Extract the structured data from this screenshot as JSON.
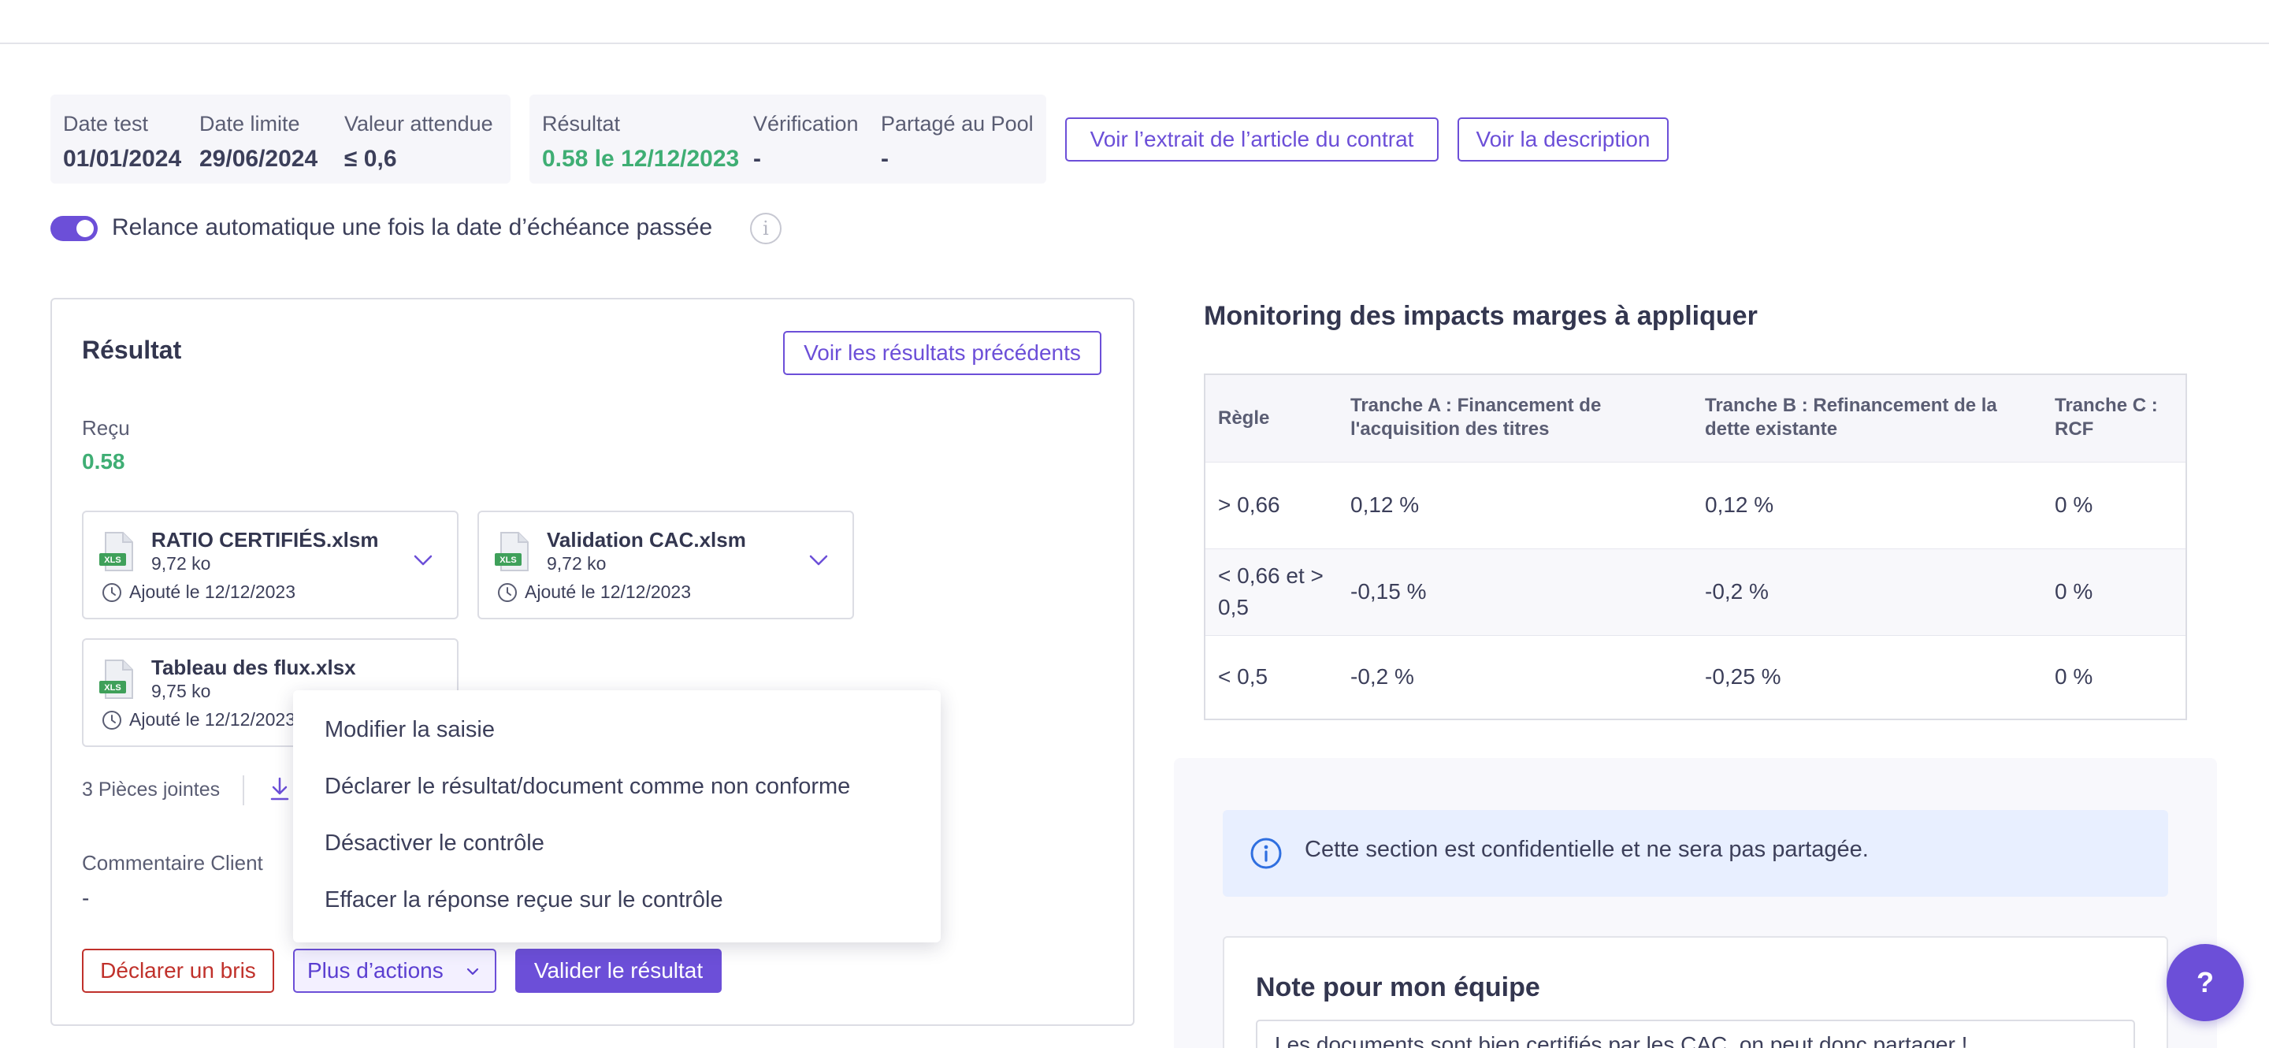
{
  "info": {
    "date_test_label": "Date test",
    "date_test_value": "01/01/2024",
    "date_limite_label": "Date limite",
    "date_limite_value": "29/06/2024",
    "valeur_attendue_label": "Valeur attendue",
    "valeur_attendue_value": "≤ 0,6",
    "resultat_label": "Résultat",
    "resultat_value": "0.58 le 12/12/2023",
    "verification_label": "Vérification",
    "verification_value": "-",
    "partage_label": "Partagé au Pool",
    "partage_value": "-"
  },
  "header_buttons": {
    "extrait": "Voir l’extrait de l’article du contrat",
    "description": "Voir la description"
  },
  "relance": {
    "label": "Relance automatique une fois la date d’échéance passée",
    "enabled": true,
    "info_icon": "i"
  },
  "result_card": {
    "title": "Résultat",
    "previous_button": "Voir les résultats précédents",
    "recu_label": "Reçu",
    "recu_value": "0.58",
    "files": [
      {
        "name": "RATIO CERTIFIÉS.xlsm",
        "size": "9,72 ko",
        "date": "Ajouté le 12/12/2023",
        "icon": "xls-file-icon",
        "badge": "XLS"
      },
      {
        "name": "Validation CAC.xlsm",
        "size": "9,72 ko",
        "date": "Ajouté le 12/12/2023",
        "icon": "xls-file-icon",
        "badge": "XLS"
      },
      {
        "name": "Tableau des flux.xlsx",
        "size": "9,75 ko",
        "date": "Ajouté le 12/12/2023",
        "icon": "xls-file-icon",
        "badge": "XLS"
      }
    ],
    "attachments_label": "3 Pièces jointes",
    "comment_label": "Commentaire Client",
    "comment_value": "-",
    "btn_bris": "Déclarer un bris",
    "btn_more": "Plus d’actions",
    "btn_validate": "Valider le résultat"
  },
  "dropdown": {
    "items": [
      "Modifier la saisie",
      "Déclarer le résultat/document comme non conforme",
      "Désactiver le contrôle",
      "Effacer la réponse reçue sur le contrôle"
    ]
  },
  "monitoring": {
    "title": "Monitoring des impacts marges à appliquer",
    "headers": [
      "Règle",
      "Tranche A : Financement de l'acquisition des titres",
      "Tranche B : Refinancement de la dette existante",
      "Tranche C : RCF"
    ],
    "rows": [
      [
        "> 0,66",
        "0,12 %",
        "0,12 %",
        "0 %"
      ],
      [
        "< 0,66 et > 0,5",
        "-0,15 %",
        "-0,2 %",
        "0 %"
      ],
      [
        "< 0,5",
        "-0,2 %",
        "-0,25 %",
        "0 %"
      ]
    ]
  },
  "confidential": {
    "banner_text": "Cette section est confidentielle et ne sera pas partagée.",
    "note_title": "Note pour mon équipe",
    "note_text": "Les documents sont bien certifiés par les CAC, on peut donc partager !"
  },
  "help": {
    "label": "?"
  },
  "colors": {
    "accent": "#6c4fd8",
    "success": "#3fae74",
    "danger": "#c0312b",
    "info_bg": "#e8efff"
  }
}
